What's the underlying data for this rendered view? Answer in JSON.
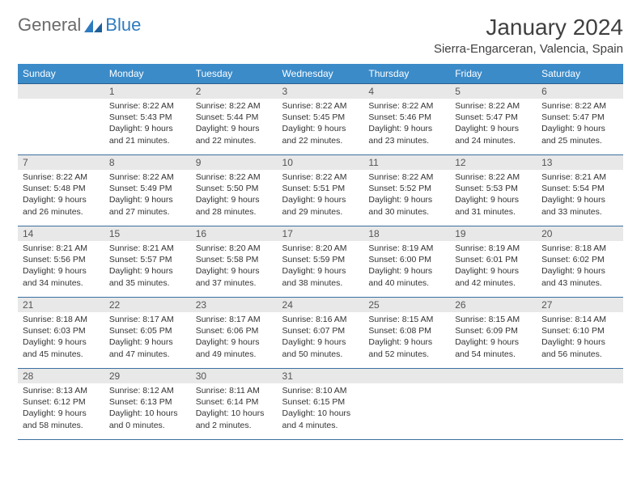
{
  "brand": {
    "word1": "General",
    "word2": "Blue"
  },
  "title": "January 2024",
  "location": "Sierra-Engarceran, Valencia, Spain",
  "colors": {
    "header_bg": "#3b8bc9",
    "header_text": "#ffffff",
    "daynum_bg": "#e8e8e8",
    "daynum_text": "#555555",
    "cell_border": "#3b6fa0",
    "body_text": "#333333",
    "brand_gray": "#6a6a6a",
    "brand_blue": "#2f7bbf"
  },
  "weekdays": [
    "Sunday",
    "Monday",
    "Tuesday",
    "Wednesday",
    "Thursday",
    "Friday",
    "Saturday"
  ],
  "weeks": [
    [
      null,
      {
        "n": "1",
        "sr": "8:22 AM",
        "ss": "5:43 PM",
        "dl": "9 hours and 21 minutes."
      },
      {
        "n": "2",
        "sr": "8:22 AM",
        "ss": "5:44 PM",
        "dl": "9 hours and 22 minutes."
      },
      {
        "n": "3",
        "sr": "8:22 AM",
        "ss": "5:45 PM",
        "dl": "9 hours and 22 minutes."
      },
      {
        "n": "4",
        "sr": "8:22 AM",
        "ss": "5:46 PM",
        "dl": "9 hours and 23 minutes."
      },
      {
        "n": "5",
        "sr": "8:22 AM",
        "ss": "5:47 PM",
        "dl": "9 hours and 24 minutes."
      },
      {
        "n": "6",
        "sr": "8:22 AM",
        "ss": "5:47 PM",
        "dl": "9 hours and 25 minutes."
      }
    ],
    [
      {
        "n": "7",
        "sr": "8:22 AM",
        "ss": "5:48 PM",
        "dl": "9 hours and 26 minutes."
      },
      {
        "n": "8",
        "sr": "8:22 AM",
        "ss": "5:49 PM",
        "dl": "9 hours and 27 minutes."
      },
      {
        "n": "9",
        "sr": "8:22 AM",
        "ss": "5:50 PM",
        "dl": "9 hours and 28 minutes."
      },
      {
        "n": "10",
        "sr": "8:22 AM",
        "ss": "5:51 PM",
        "dl": "9 hours and 29 minutes."
      },
      {
        "n": "11",
        "sr": "8:22 AM",
        "ss": "5:52 PM",
        "dl": "9 hours and 30 minutes."
      },
      {
        "n": "12",
        "sr": "8:22 AM",
        "ss": "5:53 PM",
        "dl": "9 hours and 31 minutes."
      },
      {
        "n": "13",
        "sr": "8:21 AM",
        "ss": "5:54 PM",
        "dl": "9 hours and 33 minutes."
      }
    ],
    [
      {
        "n": "14",
        "sr": "8:21 AM",
        "ss": "5:56 PM",
        "dl": "9 hours and 34 minutes."
      },
      {
        "n": "15",
        "sr": "8:21 AM",
        "ss": "5:57 PM",
        "dl": "9 hours and 35 minutes."
      },
      {
        "n": "16",
        "sr": "8:20 AM",
        "ss": "5:58 PM",
        "dl": "9 hours and 37 minutes."
      },
      {
        "n": "17",
        "sr": "8:20 AM",
        "ss": "5:59 PM",
        "dl": "9 hours and 38 minutes."
      },
      {
        "n": "18",
        "sr": "8:19 AM",
        "ss": "6:00 PM",
        "dl": "9 hours and 40 minutes."
      },
      {
        "n": "19",
        "sr": "8:19 AM",
        "ss": "6:01 PM",
        "dl": "9 hours and 42 minutes."
      },
      {
        "n": "20",
        "sr": "8:18 AM",
        "ss": "6:02 PM",
        "dl": "9 hours and 43 minutes."
      }
    ],
    [
      {
        "n": "21",
        "sr": "8:18 AM",
        "ss": "6:03 PM",
        "dl": "9 hours and 45 minutes."
      },
      {
        "n": "22",
        "sr": "8:17 AM",
        "ss": "6:05 PM",
        "dl": "9 hours and 47 minutes."
      },
      {
        "n": "23",
        "sr": "8:17 AM",
        "ss": "6:06 PM",
        "dl": "9 hours and 49 minutes."
      },
      {
        "n": "24",
        "sr": "8:16 AM",
        "ss": "6:07 PM",
        "dl": "9 hours and 50 minutes."
      },
      {
        "n": "25",
        "sr": "8:15 AM",
        "ss": "6:08 PM",
        "dl": "9 hours and 52 minutes."
      },
      {
        "n": "26",
        "sr": "8:15 AM",
        "ss": "6:09 PM",
        "dl": "9 hours and 54 minutes."
      },
      {
        "n": "27",
        "sr": "8:14 AM",
        "ss": "6:10 PM",
        "dl": "9 hours and 56 minutes."
      }
    ],
    [
      {
        "n": "28",
        "sr": "8:13 AM",
        "ss": "6:12 PM",
        "dl": "9 hours and 58 minutes."
      },
      {
        "n": "29",
        "sr": "8:12 AM",
        "ss": "6:13 PM",
        "dl": "10 hours and 0 minutes."
      },
      {
        "n": "30",
        "sr": "8:11 AM",
        "ss": "6:14 PM",
        "dl": "10 hours and 2 minutes."
      },
      {
        "n": "31",
        "sr": "8:10 AM",
        "ss": "6:15 PM",
        "dl": "10 hours and 4 minutes."
      },
      null,
      null,
      null
    ]
  ],
  "labels": {
    "sunrise": "Sunrise:",
    "sunset": "Sunset:",
    "daylight": "Daylight:"
  }
}
